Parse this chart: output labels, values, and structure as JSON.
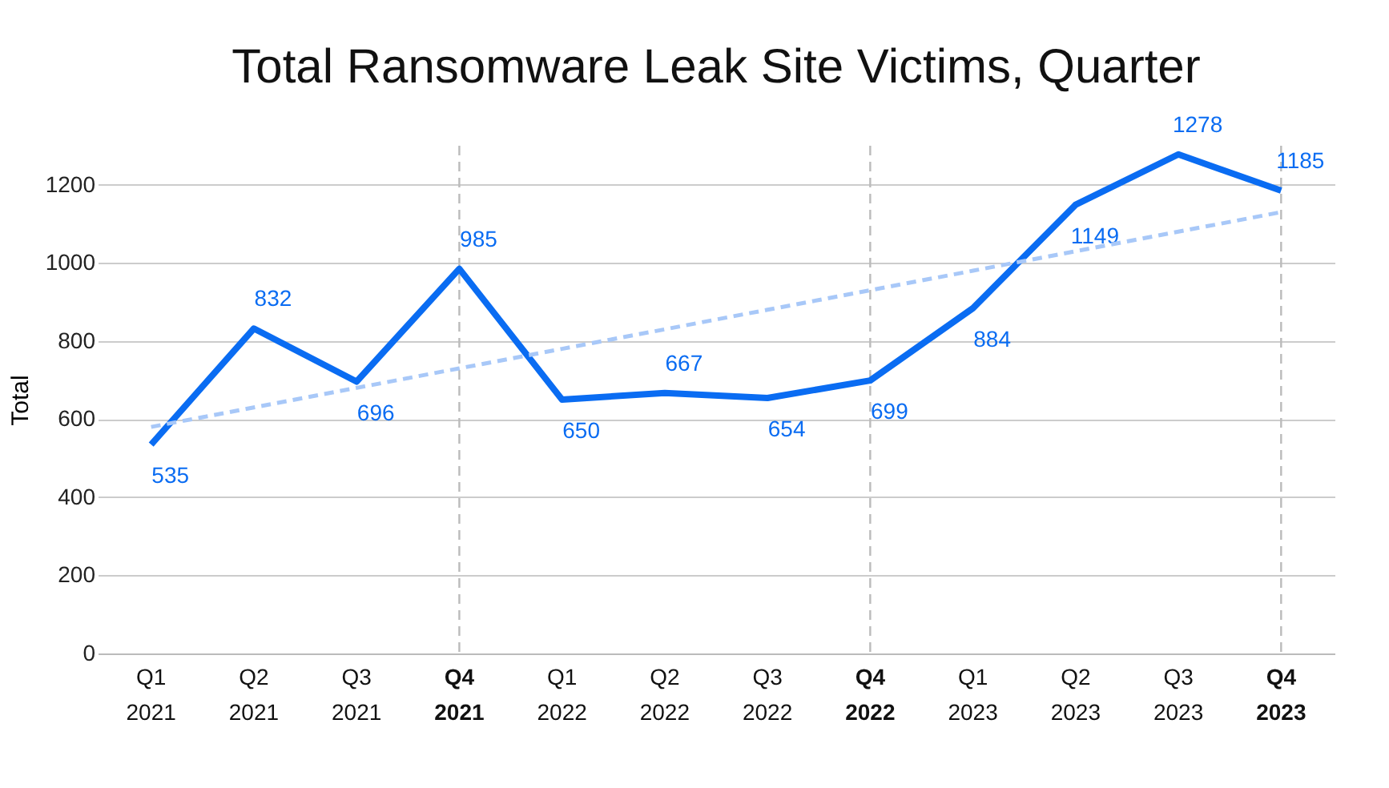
{
  "chart_data": {
    "type": "line",
    "title": "Total Ransomware Leak Site Victims, Quarter",
    "ylabel": "Total",
    "categories": [
      "Q1\n2021",
      "Q2\n2021",
      "Q3\n2021",
      "Q4\n2021",
      "Q1\n2022",
      "Q2\n2022",
      "Q3\n2022",
      "Q4\n2022",
      "Q1\n2023",
      "Q2\n2023",
      "Q3\n2023",
      "Q4\n2023"
    ],
    "series": [
      {
        "color": "#0a6cf2",
        "values": [
          535,
          832,
          696,
          985,
          650,
          667,
          654,
          699,
          884,
          1149,
          1278,
          1185
        ],
        "data_labels": true,
        "line_style": "solid"
      },
      {
        "type": "line",
        "color": "#a8c8f8",
        "values": [
          580,
          630,
          680,
          730,
          780,
          830,
          880,
          930,
          980,
          1030,
          1080,
          1130
        ],
        "line_style": "dashed"
      }
    ],
    "ref_lines": [
      {
        "axis": "x",
        "value": "Q4\n2021",
        "color": "#bbbbbb",
        "line_style": "dashed"
      },
      {
        "axis": "x",
        "value": "Q4\n2022",
        "color": "#bbbbbb",
        "line_style": "dashed"
      },
      {
        "axis": "x",
        "value": "Q4\n2023",
        "color": "#bbbbbb",
        "line_style": "dashed"
      }
    ],
    "ylim": [
      0,
      1300
    ],
    "yticks": [
      0,
      200,
      400,
      600,
      800,
      1000,
      1200
    ],
    "grid": "y",
    "marker": "none"
  }
}
